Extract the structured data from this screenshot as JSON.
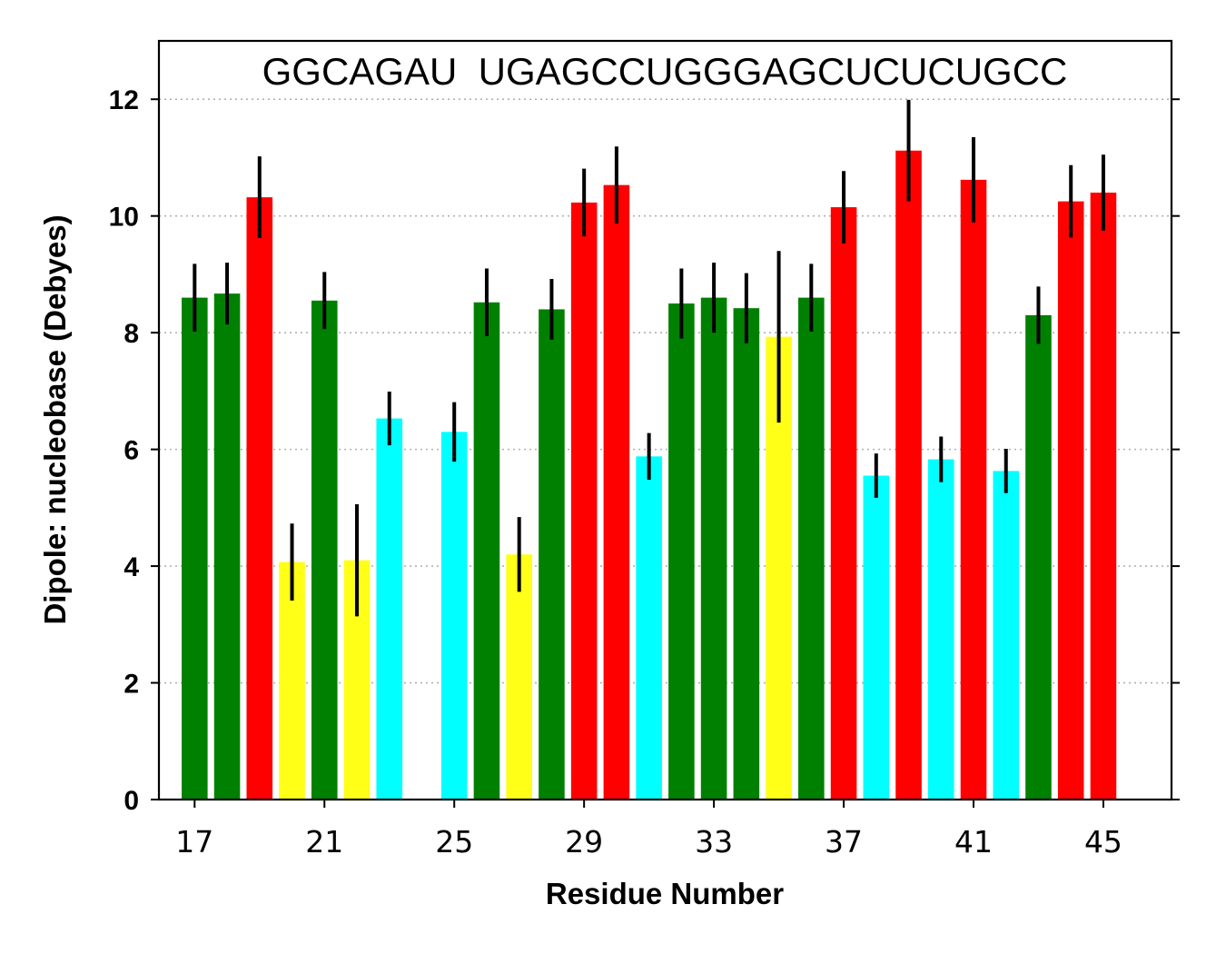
{
  "chart_data": {
    "type": "bar",
    "title": "",
    "sequence_label": "GGCAGAU  UGAGCCUGGGAGCUCUCUGCC",
    "xlabel": "Residue Number",
    "ylabel": "Dipole: nucleobase (Debyes)",
    "xlim": [
      15.9,
      47.1
    ],
    "ylim": [
      0,
      13
    ],
    "xticks": [
      17,
      21,
      25,
      29,
      33,
      37,
      41,
      45
    ],
    "yticks": [
      0,
      2,
      4,
      6,
      8,
      10,
      12
    ],
    "grid": "y-dotted",
    "nucleotide_colors": {
      "G": "#008000",
      "C": "#ff0000",
      "A": "#ffff17",
      "U": "#00ffff"
    },
    "x": [
      17,
      18,
      19,
      20,
      21,
      22,
      23,
      25,
      26,
      27,
      28,
      29,
      30,
      31,
      32,
      33,
      34,
      35,
      36,
      37,
      38,
      39,
      40,
      41,
      42,
      43,
      44,
      45
    ],
    "base": [
      "G",
      "G",
      "C",
      "A",
      "G",
      "A",
      "U",
      "U",
      "G",
      "A",
      "G",
      "C",
      "C",
      "U",
      "G",
      "G",
      "G",
      "A",
      "G",
      "C",
      "U",
      "C",
      "U",
      "C",
      "U",
      "G",
      "C",
      "C"
    ],
    "values": [
      8.6,
      8.67,
      10.32,
      4.07,
      8.55,
      4.1,
      6.53,
      6.3,
      8.52,
      4.2,
      8.4,
      10.23,
      10.53,
      5.88,
      8.5,
      8.6,
      8.42,
      7.93,
      8.6,
      10.15,
      5.55,
      11.12,
      5.83,
      10.62,
      5.63,
      8.3,
      10.25,
      10.4
    ],
    "errors": [
      0.58,
      0.53,
      0.7,
      0.66,
      0.49,
      0.96,
      0.46,
      0.51,
      0.58,
      0.64,
      0.52,
      0.58,
      0.66,
      0.4,
      0.6,
      0.6,
      0.6,
      1.47,
      0.58,
      0.62,
      0.38,
      0.87,
      0.39,
      0.73,
      0.38,
      0.49,
      0.62,
      0.65
    ]
  }
}
